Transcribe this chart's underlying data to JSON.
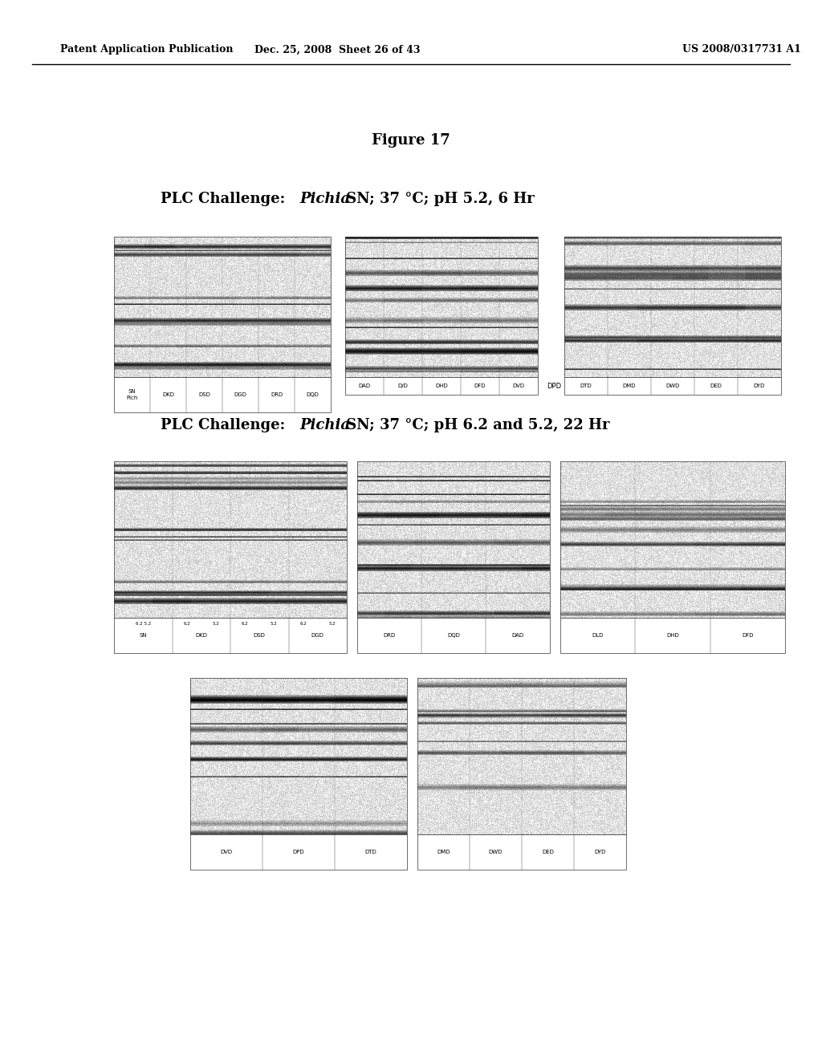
{
  "page_title_left": "Patent Application Publication",
  "page_title_center": "Dec. 25, 2008  Sheet 26 of 43",
  "page_title_right": "US 2008/0317731 A1",
  "figure_label": "Figure 17",
  "subtitle1": "PLC Challenge: Pichia SN; 37 °C; pH 5.2, 6 Hr",
  "subtitle2": "PLC Challenge: Pichia SN; 37 °C; pH 6.2 and 5.2, 22 Hr",
  "bg_color": "#ffffff",
  "text_color": "#000000",
  "gel_color": "#808080"
}
